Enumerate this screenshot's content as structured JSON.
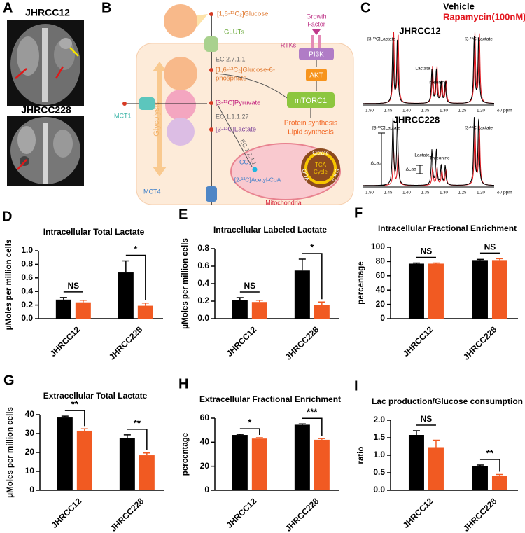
{
  "panel_a": {
    "panel": "A",
    "labels": [
      "JHRCC12",
      "JHRCC228"
    ]
  },
  "panel_b": {
    "panel": "B",
    "glucose": "[1,6-¹³C₂]Glucose",
    "gluts": "GLUTs",
    "growth_factor": [
      "Growth",
      "Factor"
    ],
    "rtks": "RTKs",
    "ec1": "EC 2.7.1.1",
    "g6p": [
      "[1,6-¹³C₂]Glucose-6-",
      "phosphate"
    ],
    "pi3k": "PI3K",
    "akt": "AKT",
    "mtorc1": "mTORC1",
    "pyruvate": "[3-¹³C]Pyruvate",
    "ec2": "EC 1.1.1.27",
    "lactate": "[3-¹³C]Lactate",
    "mct1": "MCT1",
    "glycolysis": "Glycolysis",
    "synthesis": [
      "Protein synthesis",
      "Lipid synthesis"
    ],
    "ec3": "EC 1.2.4.1",
    "co2": "CO₂",
    "acetyl": "[2-¹³C]Acetyl-CoA",
    "citrate": "Citrate",
    "tca": [
      "TCA",
      "Cycle"
    ],
    "akg": "α-KG",
    "ooa": "OOA",
    "mito": "Mitochondria",
    "mct4": "MCT4"
  },
  "panel_c": {
    "panel": "C",
    "legend": [
      "Vehicle",
      "Rapamycin(100nM)"
    ],
    "samples": [
      "JHRCC12",
      "JHRCC228"
    ],
    "top_labels": [
      "[3-¹³C]Lactate",
      "Lactate",
      "Threonine",
      "[3-¹³C]Lactate"
    ],
    "bottom_labels": [
      "[3-¹³C]Lactate",
      "ΔLac",
      "Lactate",
      "ΔLac",
      "Threonine",
      "[3-¹³C]Lactate"
    ],
    "ticks": [
      "1.50",
      "1.45",
      "1.40",
      "1.35",
      "1.30",
      "1.25",
      "1.20"
    ],
    "axis_label": "δ / ppm"
  },
  "chart_data": [
    {
      "type": "bar",
      "panel": "D",
      "title": "Intracellular Total Lactate",
      "ylabel": "μMoles per million cells",
      "categories": [
        "JHRCC12",
        "JHRCC228"
      ],
      "series": [
        {
          "color": "#000000",
          "values": [
            0.28,
            0.68
          ],
          "errors": [
            0.03,
            0.17
          ]
        },
        {
          "color": "#f15a22",
          "values": [
            0.24,
            0.19
          ],
          "errors": [
            0.03,
            0.04
          ]
        }
      ],
      "ylim": [
        0,
        1
      ],
      "yticks": [
        {
          "value": 0,
          "label": "0.0"
        },
        0.2,
        0.4,
        0.6,
        0.8,
        {
          "value": 1,
          "label": "1.0"
        }
      ],
      "annotations": [
        "NS",
        "*"
      ]
    },
    {
      "type": "bar",
      "panel": "E",
      "title": "Intracellular Labeled Lactate",
      "ylabel": "μMoles per million cells",
      "categories": [
        "JHRCC12",
        "JHRCC228"
      ],
      "series": [
        {
          "color": "#000000",
          "values": [
            0.21,
            0.55
          ],
          "errors": [
            0.03,
            0.13
          ]
        },
        {
          "color": "#f15a22",
          "values": [
            0.19,
            0.16
          ],
          "errors": [
            0.02,
            0.03
          ]
        }
      ],
      "ylim": [
        0,
        0.8
      ],
      "yticks": [
        {
          "value": 0,
          "label": "0.0"
        },
        0.2,
        0.4,
        0.6,
        0.8
      ],
      "annotations": [
        "NS",
        "*"
      ]
    },
    {
      "type": "bar",
      "panel": "F",
      "title": "Intracellular Fractional Enrichment",
      "ylabel": "percentage",
      "categories": [
        "JHRCC12",
        "JHRCC228"
      ],
      "series": [
        {
          "color": "#000000",
          "values": [
            77,
            82
          ],
          "errors": [
            1,
            1
          ]
        },
        {
          "color": "#f15a22",
          "values": [
            77,
            82
          ],
          "errors": [
            1,
            2
          ]
        }
      ],
      "ylim": [
        0,
        100
      ],
      "yticks": [
        0,
        20,
        40,
        60,
        80,
        100
      ],
      "annotations": [
        "NS",
        "NS"
      ]
    },
    {
      "type": "bar",
      "panel": "G",
      "title": "Extracellular Total Lactate",
      "ylabel": "μMoles per million cells",
      "categories": [
        "JHRCC12",
        "JHRCC228"
      ],
      "series": [
        {
          "color": "#000000",
          "values": [
            38.5,
            27.5
          ],
          "errors": [
            0.7,
            1.8
          ]
        },
        {
          "color": "#f15a22",
          "values": [
            31.5,
            18.5
          ],
          "errors": [
            1,
            1.2
          ]
        }
      ],
      "ylim": [
        0,
        40
      ],
      "yticks": [
        0,
        10,
        20,
        30,
        40
      ],
      "annotations": [
        "**",
        "**"
      ]
    },
    {
      "type": "bar",
      "panel": "H",
      "title": "Extracellular Fractional Enrichment",
      "ylabel": "percentage",
      "categories": [
        "JHRCC12",
        "JHRCC228"
      ],
      "series": [
        {
          "color": "#000000",
          "values": [
            46,
            54.5
          ],
          "errors": [
            0.5,
            0.7
          ]
        },
        {
          "color": "#f15a22",
          "values": [
            43,
            42
          ],
          "errors": [
            0.7,
            1
          ]
        }
      ],
      "ylim": [
        0,
        60
      ],
      "yticks": [
        0,
        20,
        40,
        60
      ],
      "annotations": [
        "*",
        "***"
      ]
    },
    {
      "type": "bar",
      "panel": "I",
      "title": "Lac production/Glucose consumption",
      "ylabel": "ratio",
      "categories": [
        "JHRCC12",
        "JHRCC228"
      ],
      "series": [
        {
          "color": "#000000",
          "values": [
            1.58,
            0.68
          ],
          "errors": [
            0.12,
            0.04
          ]
        },
        {
          "color": "#f15a22",
          "values": [
            1.23,
            0.41
          ],
          "errors": [
            0.2,
            0.04
          ]
        }
      ],
      "ylim": [
        0,
        2
      ],
      "yticks": [
        {
          "value": 0,
          "label": "0.0"
        },
        0.5,
        {
          "value": 1,
          "label": "1.0"
        },
        1.5,
        {
          "value": 2,
          "label": "2.0"
        }
      ],
      "annotations": [
        "NS",
        "**"
      ]
    }
  ]
}
